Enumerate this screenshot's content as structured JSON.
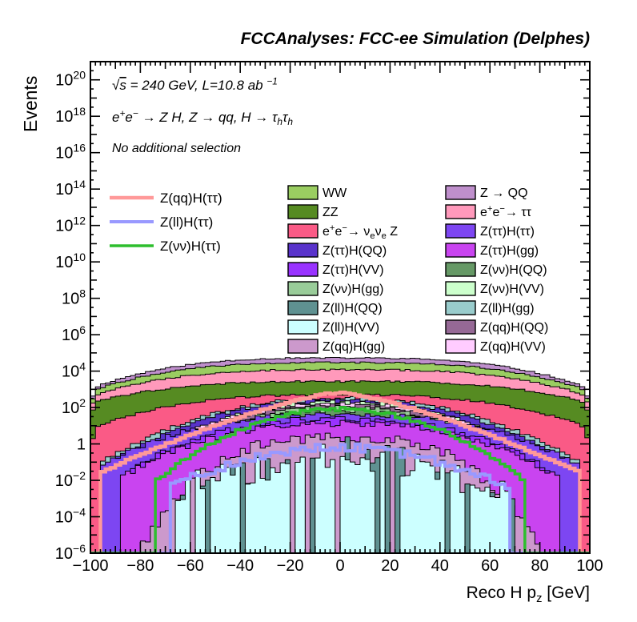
{
  "title": "FCCAnalyses: FCC-ee Simulation (Delphes)",
  "annotations": {
    "line1": [
      [
        "n",
        "√"
      ],
      [
        "ol",
        "s"
      ],
      [
        "n",
        " = 240 GeV, L=10.8 ab "
      ],
      [
        "sup",
        "−1"
      ]
    ],
    "line2": [
      [
        "n",
        "e"
      ],
      [
        "sup",
        "+"
      ],
      [
        "n",
        "e"
      ],
      [
        "sup",
        "−"
      ],
      [
        "n",
        " → Z H, Z  → qq, H  → τ"
      ],
      [
        "sub",
        "h"
      ],
      [
        "n",
        "τ"
      ],
      [
        "sub",
        "h"
      ]
    ],
    "line3": [
      [
        "n",
        "No additional selection"
      ]
    ]
  },
  "axes": {
    "y": {
      "title": "Events",
      "tick_exponents": [
        20,
        18,
        16,
        14,
        12,
        10,
        8,
        6,
        4,
        2,
        0,
        -2,
        -4,
        -6
      ],
      "log_min": -6,
      "log_max": 21
    },
    "x": {
      "title_segments": [
        [
          "n",
          "Reco H p"
        ],
        [
          "sub",
          "z"
        ],
        [
          "n",
          " [GeV]"
        ]
      ],
      "ticks": [
        -100,
        -80,
        -60,
        -40,
        -20,
        0,
        20,
        40,
        60,
        80,
        100
      ],
      "min": -100,
      "max": 100
    }
  },
  "legend": {
    "signals": [
      {
        "segments": [
          [
            "n",
            "Z(qq)H(ττ)"
          ]
        ],
        "color": "#FF9999",
        "width": 4.5
      },
      {
        "segments": [
          [
            "n",
            "Z(ll)H(ττ)"
          ]
        ],
        "color": "#9999FF",
        "width": 4
      },
      {
        "segments": [
          [
            "n",
            "Z(νν)H(ττ)"
          ]
        ],
        "color": "#2DBE2D",
        "width": 3.5
      }
    ],
    "col1": [
      {
        "segments": [
          [
            "n",
            "WW"
          ]
        ],
        "color": "#9ACD61"
      },
      {
        "segments": [
          [
            "n",
            "ZZ"
          ]
        ],
        "color": "#568B22"
      },
      {
        "segments": [
          [
            "n",
            "e"
          ],
          [
            "sup",
            "+"
          ],
          [
            "n",
            "e"
          ],
          [
            "sup",
            "−"
          ],
          [
            "n",
            "→ ν"
          ],
          [
            "sub",
            "e"
          ],
          [
            "n",
            "ν"
          ],
          [
            "sub",
            "e"
          ],
          [
            "n",
            " Z"
          ]
        ],
        "color": "#FA5A86"
      },
      {
        "segments": [
          [
            "n",
            "Z(ττ)H(QQ)"
          ]
        ],
        "color": "#5933CB"
      },
      {
        "segments": [
          [
            "n",
            "Z(ττ)H(VV)"
          ]
        ],
        "color": "#9933FF"
      },
      {
        "segments": [
          [
            "n",
            "Z(νν)H(gg)"
          ]
        ],
        "color": "#99CC99"
      },
      {
        "segments": [
          [
            "n",
            "Z(ll)H(QQ)"
          ]
        ],
        "color": "#5F9191"
      },
      {
        "segments": [
          [
            "n",
            "Z(ll)H(VV)"
          ]
        ],
        "color": "#CCFFFF"
      },
      {
        "segments": [
          [
            "n",
            "Z(qq)H(gg)"
          ]
        ],
        "color": "#CC99CC"
      }
    ],
    "col2": [
      {
        "segments": [
          [
            "n",
            "Z → QQ"
          ]
        ],
        "color": "#BF8FCC"
      },
      {
        "segments": [
          [
            "n",
            "e"
          ],
          [
            "sup",
            "+"
          ],
          [
            "n",
            "e"
          ],
          [
            "sup",
            "−"
          ],
          [
            "n",
            "→ ττ"
          ]
        ],
        "color": "#FF99BB"
      },
      {
        "segments": [
          [
            "n",
            "Z(ττ)H(ττ)"
          ]
        ],
        "color": "#7D46F2"
      },
      {
        "segments": [
          [
            "n",
            "Z(ττ)H(gg)"
          ]
        ],
        "color": "#C944F0"
      },
      {
        "segments": [
          [
            "n",
            "Z(νν)H(QQ)"
          ]
        ],
        "color": "#669966"
      },
      {
        "segments": [
          [
            "n",
            "Z(νν)H(VV)"
          ]
        ],
        "color": "#CCFFCC"
      },
      {
        "segments": [
          [
            "n",
            "Z(ll)H(gg)"
          ]
        ],
        "color": "#99CCCC"
      },
      {
        "segments": [
          [
            "n",
            "Z(qq)H(QQ)"
          ]
        ],
        "color": "#966996"
      },
      {
        "segments": [
          [
            "n",
            "Z(qq)H(VV)"
          ]
        ],
        "color": "#FFCCFF"
      }
    ]
  },
  "chart_data": {
    "type": "bar",
    "subtype": "stacked-log-histogram",
    "title": "FCCAnalyses: FCC-ee Simulation (Delphes)",
    "xlabel": "Reco H p_z [GeV]",
    "ylabel": "Events",
    "x_range": [
      -100,
      100
    ],
    "n_bins": 100,
    "bin_width_gev": 2,
    "y_log10_range": [
      -6,
      21
    ],
    "grid": false,
    "legend_position": "top-inside",
    "layers_note": "painted top-of-stack first to bottom-of-stack last; each entry gives log10(events) at x=0 (center) and at |x|=extent (edge), arch exponent 'power', bin noise in dex, probability of empty bin, and edge droop",
    "layers": [
      {
        "name": "Z → QQ",
        "color": "#BF8FCC",
        "center": 4.72,
        "edge": 3.05,
        "extent": 100,
        "power": 3,
        "noise": 0.035,
        "zero_prob": 0,
        "droop": 0.8,
        "seed": 11
      },
      {
        "name": "WW",
        "color": "#9ACD61",
        "center": 4.47,
        "edge": 2.9,
        "extent": 100,
        "power": 3,
        "noise": 0.04,
        "zero_prob": 0,
        "droop": 0.8,
        "seed": 22
      },
      {
        "name": "e+e- → ττ",
        "color": "#FF99BB",
        "center": 4.08,
        "edge": 2.62,
        "extent": 100,
        "power": 3,
        "noise": 0.045,
        "zero_prob": 0,
        "droop": 0.7,
        "seed": 33
      },
      {
        "name": "ZZ",
        "color": "#568B22",
        "center": 3.43,
        "edge": 2.25,
        "extent": 100,
        "power": 3,
        "noise": 0.05,
        "zero_prob": 0,
        "droop": 0.7,
        "seed": 44
      },
      {
        "name": "e+e- → νeνe Z",
        "color": "#FA5A86",
        "center": 2.72,
        "edge": 0.9,
        "extent": 100,
        "power": 2.6,
        "noise": 0.07,
        "zero_prob": 0,
        "droop": 1.1,
        "seed": 55
      },
      {
        "name": "Z(ll)H(gg)",
        "color": "#99CCCC",
        "center": 2.52,
        "edge": -1.0,
        "extent": 96,
        "power": 2.2,
        "noise": 0.09,
        "zero_prob": 0,
        "droop": 0,
        "seed": 66
      },
      {
        "name": "Z(ττ)H(QQ)",
        "color": "#5933CB",
        "center": 2.42,
        "edge": -1.3,
        "extent": 96,
        "power": 2.2,
        "noise": 0.09,
        "zero_prob": 0,
        "droop": 0,
        "seed": 77
      },
      {
        "name": "Z(νν)H(VV)",
        "color": "#CCFFCC",
        "center": 2.32,
        "edge": -1.8,
        "extent": 91,
        "power": 2.2,
        "noise": 0.1,
        "zero_prob": 0,
        "droop": 0,
        "seed": 88
      },
      {
        "name": "Z(qq)H(VV)",
        "color": "#FFCCFF",
        "center": 2.22,
        "edge": -1.8,
        "extent": 93,
        "power": 2.2,
        "noise": 0.1,
        "zero_prob": 0,
        "droop": 0,
        "seed": 99
      },
      {
        "name": "Z(qq)H(QQ)",
        "color": "#966996",
        "center": 2.12,
        "edge": -1.8,
        "extent": 93,
        "power": 2.2,
        "noise": 0.1,
        "zero_prob": 0,
        "droop": 0,
        "seed": 111
      },
      {
        "name": "Z(νν)H(gg)",
        "color": "#99CC99",
        "center": 2.02,
        "edge": -2.2,
        "extent": 89,
        "power": 2.2,
        "noise": 0.11,
        "zero_prob": 0,
        "droop": 0,
        "seed": 122
      },
      {
        "name": "Z(νν)H(QQ)",
        "color": "#669966",
        "center": 1.82,
        "edge": -2.2,
        "extent": 89,
        "power": 2.2,
        "noise": 0.12,
        "zero_prob": 0,
        "droop": 0,
        "seed": 133
      },
      {
        "name": "Z(ττ)H(ττ)",
        "color": "#7D46F2",
        "center": 1.6,
        "edge": -1.2,
        "extent": 96,
        "power": 2.6,
        "noise": 0.13,
        "zero_prob": 0,
        "droop": 0,
        "seed": 144
      },
      {
        "name": "Z(ττ)H(VV)",
        "color": "#9933FF",
        "center": 1.38,
        "edge": -1.5,
        "extent": 85,
        "power": 2.4,
        "noise": 0.16,
        "zero_prob": 0,
        "droop": 0,
        "seed": 155
      },
      {
        "name": "Z(ττ)H(gg)",
        "color": "#C944F0",
        "center": 1.12,
        "edge": -1.8,
        "extent": 87,
        "power": 2.4,
        "noise": 0.18,
        "zero_prob": 0,
        "droop": 0,
        "seed": 166
      },
      {
        "name": "Z(qq)H(gg)",
        "color": "#CC99CC",
        "center": 0.35,
        "edge": -6.0,
        "extent": 81,
        "power": 3,
        "noise": 0.3,
        "zero_prob": 0,
        "droop": 0,
        "seed": 177
      },
      {
        "name": "Z(ll)H(QQ)",
        "color": "#5F9191",
        "center": -0.1,
        "edge": -3.5,
        "extent": 69,
        "power": 1.5,
        "noise": 0.85,
        "zero_prob": 0.55,
        "droop": 0,
        "seed": 188
      },
      {
        "name": "Z(ll)H(VV)",
        "color": "#CCFFFF",
        "center": -0.55,
        "edge": -2.5,
        "extent": 67,
        "power": 1.2,
        "noise": 0.8,
        "zero_prob": 0.22,
        "droop": 0,
        "seed": 199
      }
    ],
    "signal_lines": [
      {
        "name": "Z(qq)H(ττ)",
        "color": "#FF9999",
        "center": 2.82,
        "edge": -1.6,
        "extent": 96.5,
        "power": 1.35,
        "noise": 0.05,
        "seed": 211,
        "width": 4.5
      },
      {
        "name": "Z(ll)H(ττ)",
        "color": "#9999FF",
        "center": -0.18,
        "edge": -2.3,
        "extent": 68,
        "power": 1.8,
        "noise": 0.22,
        "seed": 222,
        "width": 4
      },
      {
        "name": "Z(νν)H(ττ)",
        "color": "#2DBE2D",
        "center": 1.92,
        "edge": -2.0,
        "extent": 73.5,
        "power": 2.0,
        "noise": 0.1,
        "seed": 233,
        "width": 3.5
      }
    ]
  }
}
